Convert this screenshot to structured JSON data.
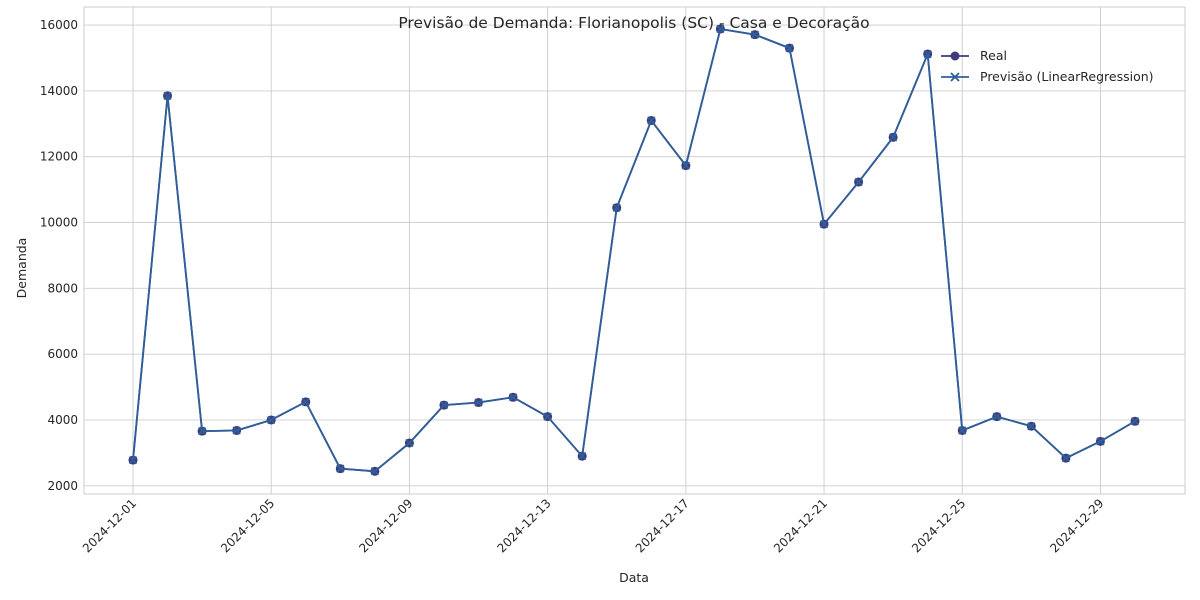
{
  "chart_data": {
    "type": "line",
    "title": "Previsão de Demanda: Florianopolis (SC) - Casa e Decoração",
    "xlabel": "Data",
    "ylabel": "Demanda",
    "x": [
      "2024-12-01",
      "2024-12-02",
      "2024-12-03",
      "2024-12-04",
      "2024-12-05",
      "2024-12-06",
      "2024-12-07",
      "2024-12-08",
      "2024-12-09",
      "2024-12-10",
      "2024-12-11",
      "2024-12-12",
      "2024-12-13",
      "2024-12-14",
      "2024-12-15",
      "2024-12-16",
      "2024-12-17",
      "2024-12-18",
      "2024-12-19",
      "2024-12-20",
      "2024-12-21",
      "2024-12-22",
      "2024-12-23",
      "2024-12-24",
      "2024-12-25",
      "2024-12-26",
      "2024-12-27",
      "2024-12-28",
      "2024-12-29",
      "2024-12-30"
    ],
    "x_ticks": [
      "2024-12-01",
      "2024-12-05",
      "2024-12-09",
      "2024-12-13",
      "2024-12-17",
      "2024-12-21",
      "2024-12-25",
      "2024-12-29"
    ],
    "y_ticks": [
      2000,
      4000,
      6000,
      8000,
      10000,
      12000,
      14000,
      16000
    ],
    "ylim": [
      1750,
      16550
    ],
    "grid": true,
    "legend_position": "top-right",
    "series": [
      {
        "name": "Real",
        "marker": "circle",
        "color": "#3f3a7a",
        "values": [
          2780,
          13850,
          3660,
          3680,
          4000,
          4550,
          2520,
          2440,
          3300,
          4450,
          4530,
          4690,
          4100,
          2900,
          10450,
          13100,
          11730,
          15880,
          15710,
          15300,
          9950,
          11230,
          12590,
          15120,
          3680,
          4100,
          3810,
          2840,
          3350,
          3960
        ]
      },
      {
        "name": "Previsão (LinearRegression)",
        "marker": "x",
        "color": "#2f5f9a",
        "values": [
          2780,
          13850,
          3660,
          3680,
          4000,
          4550,
          2520,
          2440,
          3300,
          4450,
          4530,
          4690,
          4100,
          2900,
          10450,
          13100,
          11730,
          15880,
          15710,
          15300,
          9950,
          11230,
          12590,
          15120,
          3680,
          4100,
          3810,
          2840,
          3350,
          3960
        ]
      }
    ]
  }
}
